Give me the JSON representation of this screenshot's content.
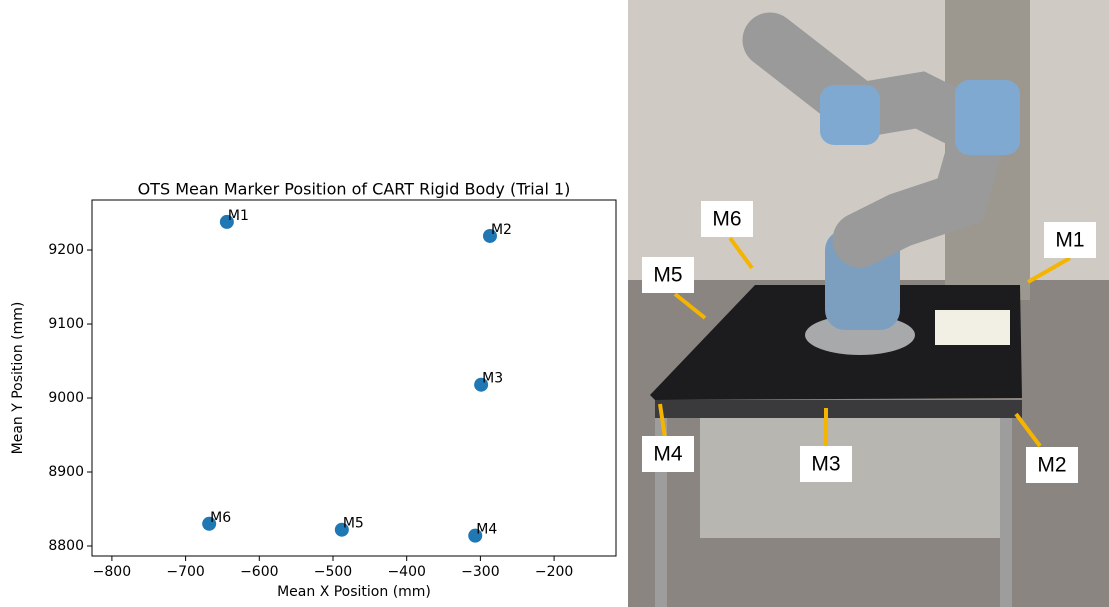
{
  "chart_data": {
    "type": "scatter",
    "title": "OTS Mean Marker Position of CART Rigid Body (Trial 1)",
    "x_label": "Mean X Position (mm)",
    "y_label": "Mean Y Position (mm)",
    "labels": [
      "M1",
      "M2",
      "M3",
      "M4",
      "M5",
      "M6"
    ],
    "x": [
      -644,
      -287,
      -299,
      -307,
      -488,
      -668
    ],
    "values": [
      9238,
      9219,
      9018,
      8814,
      8822,
      8830
    ],
    "color": "#1f77b4",
    "xlim": [
      -827,
      -116
    ],
    "ylim": [
      8786.5,
      9267.6
    ],
    "xticks": [
      {
        "value": -800,
        "label": "−800"
      },
      {
        "value": -700,
        "label": "−700"
      },
      {
        "value": -600,
        "label": "−600"
      },
      {
        "value": -500,
        "label": "−500"
      },
      {
        "value": -400,
        "label": "−400"
      },
      {
        "value": -300,
        "label": "−300"
      },
      {
        "value": -200,
        "label": "−200"
      }
    ],
    "yticks": [
      8800,
      8900,
      9000,
      9100,
      9200
    ],
    "grid": false
  },
  "photo": {
    "labels": [
      "M6",
      "M1",
      "M5",
      "M4",
      "M3",
      "M2"
    ]
  }
}
